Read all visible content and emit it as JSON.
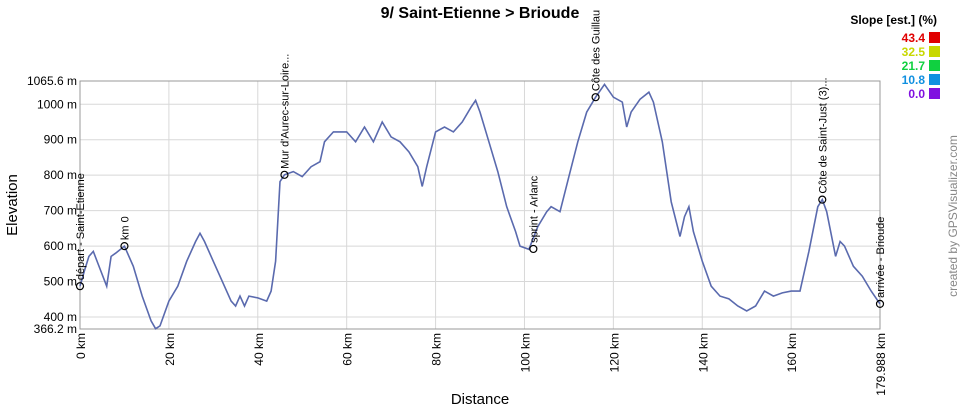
{
  "chart_data": {
    "type": "line",
    "title": "9/ Saint-Etienne > Brioude",
    "x_label": "Distance",
    "y_label": "Elevation",
    "credit": "created by GPSVisualizer.com",
    "color": "#5a6aae",
    "x": [
      0,
      1,
      2,
      3,
      4,
      6,
      7,
      8,
      10,
      12,
      14,
      16,
      17,
      18,
      20,
      22,
      24,
      26,
      27,
      28,
      30,
      32,
      34,
      35,
      36,
      37,
      38,
      40,
      42,
      43,
      44,
      45,
      46,
      48,
      50,
      52,
      54,
      55,
      57,
      60,
      62,
      64,
      66,
      68,
      70,
      72,
      74,
      76,
      77,
      78,
      80,
      82,
      84,
      86,
      88,
      89,
      90,
      92,
      94,
      96,
      98,
      99,
      101,
      103,
      105,
      106,
      108,
      110,
      112,
      114,
      116,
      118,
      120,
      122,
      123,
      124,
      126,
      128,
      129,
      131,
      133,
      135,
      136,
      137,
      138,
      140,
      142,
      144,
      146,
      148,
      150,
      152,
      154,
      156,
      158,
      160,
      162,
      164,
      166,
      167,
      168,
      170,
      171,
      172,
      174,
      176,
      178,
      179.988
    ],
    "values": [
      487,
      530,
      571,
      585,
      552,
      487,
      571,
      580,
      600,
      543,
      459,
      389,
      367,
      375,
      445,
      487,
      557,
      613,
      636,
      613,
      557,
      501,
      445,
      431,
      459,
      431,
      459,
      454,
      445,
      473,
      557,
      782,
      801,
      810,
      796,
      824,
      838,
      894,
      922,
      922,
      894,
      936,
      894,
      950,
      908,
      894,
      866,
      824,
      768,
      824,
      922,
      936,
      922,
      950,
      992,
      1011,
      978,
      894,
      810,
      711,
      641,
      600,
      591,
      655,
      697,
      711,
      697,
      796,
      894,
      978,
      1020,
      1056,
      1020,
      1006,
      936,
      978,
      1014,
      1034,
      1006,
      894,
      725,
      627,
      683,
      711,
      641,
      557,
      487,
      459,
      451,
      431,
      417,
      431,
      473,
      459,
      468,
      473,
      473,
      585,
      711,
      731,
      697,
      571,
      613,
      600,
      543,
      515,
      473,
      437
    ],
    "xlim": [
      0,
      179.988
    ],
    "ylim": [
      366.2,
      1065.6
    ],
    "xticks": [
      {
        "value": 0,
        "label": "0 km"
      },
      {
        "value": 20,
        "label": "20 km"
      },
      {
        "value": 40,
        "label": "40 km"
      },
      {
        "value": 60,
        "label": "60 km"
      },
      {
        "value": 80,
        "label": "80 km"
      },
      {
        "value": 100,
        "label": "100 km"
      },
      {
        "value": 120,
        "label": "120 km"
      },
      {
        "value": 140,
        "label": "140 km"
      },
      {
        "value": 160,
        "label": "160 km"
      },
      {
        "value": 179.988,
        "label": "179.988 km"
      }
    ],
    "yticks": [
      {
        "value": 366.2,
        "label": "366.2 m"
      },
      {
        "value": 400,
        "label": "400 m"
      },
      {
        "value": 500,
        "label": "500 m"
      },
      {
        "value": 600,
        "label": "600 m"
      },
      {
        "value": 700,
        "label": "700 m"
      },
      {
        "value": 800,
        "label": "800 m"
      },
      {
        "value": 900,
        "label": "900 m"
      },
      {
        "value": 1000,
        "label": "1000 m"
      },
      {
        "value": 1065.6,
        "label": "1065.6 m"
      }
    ],
    "grid": true,
    "waypoints": [
      {
        "x": 0,
        "y": 487,
        "label": "départ - Saint-Etienne"
      },
      {
        "x": 10,
        "y": 600,
        "label": "km 0"
      },
      {
        "x": 46,
        "y": 801,
        "label": "Mur d'Aurec-sur-Loire..."
      },
      {
        "x": 102,
        "y": 592,
        "label": "sprint - Arlanc"
      },
      {
        "x": 116,
        "y": 1020,
        "label": "Côte des Guillau"
      },
      {
        "x": 167,
        "y": 731,
        "label": "Côte de Saint-Just (3)..."
      },
      {
        "x": 179.988,
        "y": 437,
        "label": "arrivée - Brioude"
      }
    ],
    "legend": {
      "title": "Slope [est.] (%)",
      "items": [
        {
          "label": "43.4",
          "color": "#e00000"
        },
        {
          "label": "32.5",
          "color": "#c8d800"
        },
        {
          "label": "21.7",
          "color": "#10d040"
        },
        {
          "label": "10.8",
          "color": "#1090e0"
        },
        {
          "label": "0.0",
          "color": "#8010e0"
        }
      ]
    }
  }
}
